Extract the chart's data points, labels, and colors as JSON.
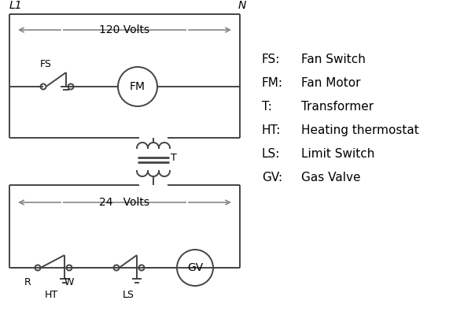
{
  "bg_color": "#ffffff",
  "line_color": "#444444",
  "arrow_color": "#888888",
  "text_color": "#000000",
  "legend_items": [
    [
      "FS:    Fan Switch"
    ],
    [
      "FM:   Fan Motor"
    ],
    [
      "T:       Transformer"
    ],
    [
      "HT:    Heating thermostat"
    ],
    [
      "LS:    Limit Switch"
    ],
    [
      "GV:   Gas Valve"
    ]
  ],
  "L1_label": "L1",
  "N_label": "N",
  "volts120_label": "120 Volts",
  "volts24_label": "24   Volts",
  "FS_label": "FS",
  "FM_label": "FM",
  "T_label": "T",
  "R_label": "R",
  "W_label": "W",
  "HT_label": "HT",
  "LS_label": "LS",
  "GV_label": "GV"
}
